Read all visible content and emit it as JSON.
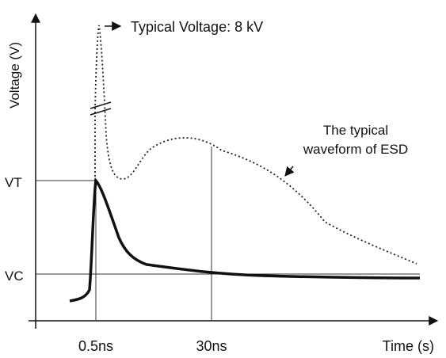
{
  "chart_data": {
    "type": "line",
    "xlabel": "Time (s)",
    "ylabel": "Voltage (V)",
    "x_ticks": [
      "0.5ns",
      "30ns"
    ],
    "y_ticks": [
      "VT",
      "VC"
    ],
    "series": [
      {
        "name": "The typical waveform of ESD",
        "style": "dotted",
        "points": [
          [
            "0.5ns",
            "8 kV"
          ]
        ]
      },
      {
        "name": "",
        "style": "solid",
        "points": [
          [
            "0.5ns",
            "VT"
          ]
        ]
      }
    ],
    "annotations": [
      {
        "id": "peak",
        "text": "Typical Voltage:  8 kV"
      },
      {
        "id": "esd_line1",
        "text": "The typical"
      },
      {
        "id": "esd_line2",
        "text": "waveform of ESD"
      }
    ],
    "axis_break": true,
    "grid": false
  }
}
